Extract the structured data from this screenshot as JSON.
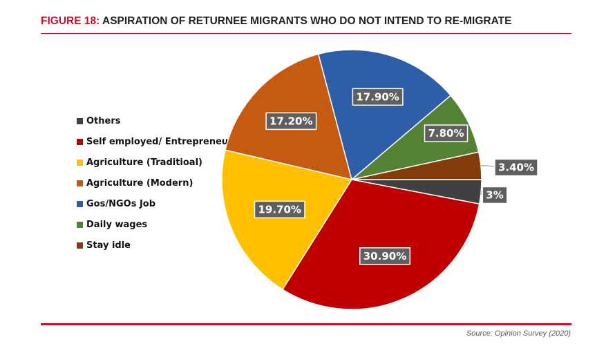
{
  "title": {
    "prefix": "FIGURE 18:",
    "text": "ASPIRATION OF RETURNEE MIGRANTS WHO DO NOT INTEND TO RE-MIGRATE"
  },
  "source": "Source: Opinion Survey (2020)",
  "colors": {
    "accent": "#c8102e"
  },
  "chart_data": {
    "type": "pie",
    "legend_position": "left",
    "slices": [
      {
        "name": "Others",
        "value": 3.0,
        "label": "3%",
        "color": "#404040"
      },
      {
        "name": "Self employed/ Entrepreneurship",
        "value": 30.9,
        "label": "30.90%",
        "color": "#c00000"
      },
      {
        "name": "Agriculture (Traditioal)",
        "value": 19.7,
        "label": "19.70%",
        "color": "#ffc000"
      },
      {
        "name": "Agriculture (Modern)",
        "value": 17.2,
        "label": "17.20%",
        "color": "#c55a11"
      },
      {
        "name": "Gos/NGOs Job",
        "value": 17.9,
        "label": "17.90%",
        "color": "#2e5ea8"
      },
      {
        "name": "Daily wages",
        "value": 7.8,
        "label": "7.80%",
        "color": "#548235"
      },
      {
        "name": "Stay idle",
        "value": 3.4,
        "label": "3.40%",
        "color": "#843c0c"
      }
    ]
  }
}
